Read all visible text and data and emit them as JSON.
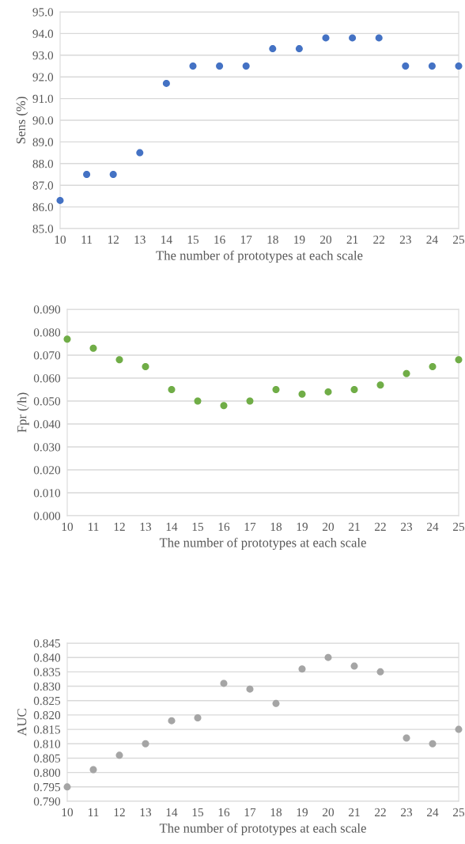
{
  "chart_data": [
    {
      "type": "scatter",
      "xlabel": "The number of prototypes at each scale",
      "ylabel": "Sens (%)",
      "x": [
        10,
        11,
        12,
        13,
        14,
        15,
        16,
        17,
        18,
        19,
        20,
        21,
        22,
        23,
        24,
        25
      ],
      "series": [
        {
          "color": "#4472c4",
          "values": [
            86.3,
            87.5,
            87.5,
            88.5,
            91.7,
            92.5,
            92.5,
            92.5,
            93.3,
            93.3,
            93.8,
            93.8,
            93.8,
            92.5,
            92.5,
            92.5
          ]
        }
      ],
      "xlim": [
        10,
        25
      ],
      "xticks": [
        10,
        11,
        12,
        13,
        14,
        15,
        16,
        17,
        18,
        19,
        20,
        21,
        22,
        23,
        24,
        25
      ],
      "ylim": [
        85,
        95
      ],
      "yticks": [
        {
          "value": 85,
          "label": "85.0"
        },
        {
          "value": 86,
          "label": "86.0"
        },
        {
          "value": 87,
          "label": "87.0"
        },
        {
          "value": 88,
          "label": "88.0"
        },
        {
          "value": 89,
          "label": "89.0"
        },
        {
          "value": 90,
          "label": "90.0"
        },
        {
          "value": 91,
          "label": "91.0"
        },
        {
          "value": 92,
          "label": "92.0"
        },
        {
          "value": 93,
          "label": "93.0"
        },
        {
          "value": 94,
          "label": "94.0"
        },
        {
          "value": 95,
          "label": "95.0"
        }
      ],
      "grid": "y",
      "marker": "circle"
    },
    {
      "type": "scatter",
      "xlabel": "The number of prototypes at each scale",
      "ylabel": "Fpr (/h)",
      "x": [
        10,
        11,
        12,
        13,
        14,
        15,
        16,
        17,
        18,
        19,
        20,
        21,
        22,
        23,
        24,
        25
      ],
      "series": [
        {
          "color": "#70ad47",
          "values": [
            0.077,
            0.073,
            0.068,
            0.065,
            0.055,
            0.05,
            0.048,
            0.05,
            0.055,
            0.053,
            0.054,
            0.055,
            0.057,
            0.062,
            0.065,
            0.068
          ]
        }
      ],
      "xlim": [
        10,
        25
      ],
      "xticks": [
        10,
        11,
        12,
        13,
        14,
        15,
        16,
        17,
        18,
        19,
        20,
        21,
        22,
        23,
        24,
        25
      ],
      "ylim": [
        0,
        0.09
      ],
      "yticks": [
        {
          "value": 0,
          "label": "0.000"
        },
        {
          "value": 0.01,
          "label": "0.010"
        },
        {
          "value": 0.02,
          "label": "0.020"
        },
        {
          "value": 0.03,
          "label": "0.030"
        },
        {
          "value": 0.04,
          "label": "0.040"
        },
        {
          "value": 0.05,
          "label": "0.050"
        },
        {
          "value": 0.06,
          "label": "0.060"
        },
        {
          "value": 0.07,
          "label": "0.070"
        },
        {
          "value": 0.08,
          "label": "0.080"
        },
        {
          "value": 0.09,
          "label": "0.090"
        }
      ],
      "grid": "y",
      "marker": "circle"
    },
    {
      "type": "scatter",
      "xlabel": "The number of prototypes at each scale",
      "ylabel": "AUC",
      "x": [
        10,
        11,
        12,
        13,
        14,
        15,
        16,
        17,
        18,
        19,
        20,
        21,
        22,
        23,
        24,
        25
      ],
      "series": [
        {
          "color": "#a5a5a5",
          "values": [
            0.795,
            0.801,
            0.806,
            0.81,
            0.818,
            0.819,
            0.831,
            0.829,
            0.824,
            0.836,
            0.84,
            0.837,
            0.835,
            0.812,
            0.81,
            0.815
          ]
        }
      ],
      "xlim": [
        10,
        25
      ],
      "xticks": [
        10,
        11,
        12,
        13,
        14,
        15,
        16,
        17,
        18,
        19,
        20,
        21,
        22,
        23,
        24,
        25
      ],
      "ylim": [
        0.79,
        0.845
      ],
      "yticks": [
        {
          "value": 0.79,
          "label": "0.790"
        },
        {
          "value": 0.795,
          "label": "0.795"
        },
        {
          "value": 0.8,
          "label": "0.800"
        },
        {
          "value": 0.805,
          "label": "0.805"
        },
        {
          "value": 0.81,
          "label": "0.810"
        },
        {
          "value": 0.815,
          "label": "0.815"
        },
        {
          "value": 0.82,
          "label": "0.820"
        },
        {
          "value": 0.825,
          "label": "0.825"
        },
        {
          "value": 0.83,
          "label": "0.830"
        },
        {
          "value": 0.835,
          "label": "0.835"
        },
        {
          "value": 0.84,
          "label": "0.840"
        },
        {
          "value": 0.845,
          "label": "0.845"
        }
      ],
      "grid": "y",
      "marker": "circle"
    }
  ]
}
